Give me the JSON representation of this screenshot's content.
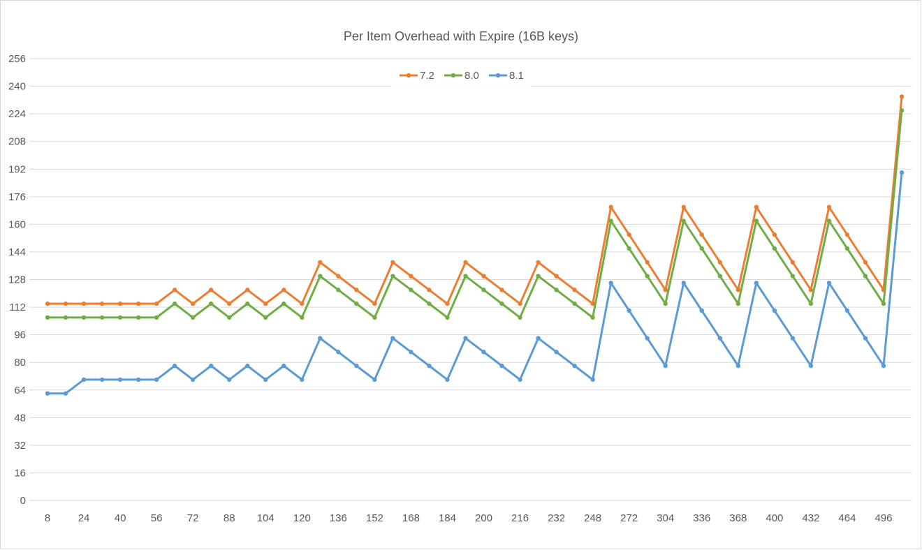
{
  "chart_data": {
    "type": "line",
    "title": "Per Item Overhead with Expire (16B keys)",
    "xlabel": "",
    "ylabel": "",
    "ylim": [
      0,
      256
    ],
    "y_ticks": [
      0,
      16,
      32,
      48,
      64,
      80,
      96,
      112,
      128,
      144,
      160,
      176,
      192,
      208,
      224,
      240,
      256
    ],
    "x": [
      8,
      16,
      24,
      32,
      40,
      48,
      56,
      64,
      72,
      80,
      88,
      96,
      104,
      112,
      120,
      128,
      136,
      144,
      152,
      160,
      168,
      176,
      184,
      192,
      200,
      208,
      216,
      224,
      232,
      240,
      248,
      256,
      272,
      288,
      304,
      320,
      336,
      352,
      368,
      384,
      400,
      416,
      432,
      448,
      464,
      480,
      496,
      512
    ],
    "x_tick_labels": [
      "8",
      "24",
      "40",
      "56",
      "72",
      "88",
      "104",
      "120",
      "136",
      "152",
      "168",
      "184",
      "200",
      "216",
      "232",
      "248",
      "272",
      "304",
      "336",
      "368",
      "400",
      "432",
      "464",
      "496"
    ],
    "grid": true,
    "legend_position": "top",
    "series": [
      {
        "name": "7.2",
        "color": "#ED7D31",
        "values": [
          114,
          114,
          114,
          114,
          114,
          114,
          114,
          122,
          114,
          122,
          114,
          122,
          114,
          122,
          114,
          138,
          130,
          122,
          114,
          138,
          130,
          122,
          114,
          138,
          130,
          122,
          114,
          138,
          130,
          122,
          114,
          170,
          154,
          138,
          122,
          170,
          154,
          138,
          122,
          170,
          154,
          138,
          122,
          170,
          154,
          138,
          122,
          234
        ]
      },
      {
        "name": "8.0",
        "color": "#70AD47",
        "values": [
          106,
          106,
          106,
          106,
          106,
          106,
          106,
          114,
          106,
          114,
          106,
          114,
          106,
          114,
          106,
          130,
          122,
          114,
          106,
          130,
          122,
          114,
          106,
          130,
          122,
          114,
          106,
          130,
          122,
          114,
          106,
          162,
          146,
          130,
          114,
          162,
          146,
          130,
          114,
          162,
          146,
          130,
          114,
          162,
          146,
          130,
          114,
          226
        ]
      },
      {
        "name": "8.1",
        "color": "#5B9BD5",
        "values": [
          62,
          62,
          70,
          70,
          70,
          70,
          70,
          78,
          70,
          78,
          70,
          78,
          70,
          78,
          70,
          94,
          86,
          78,
          70,
          94,
          86,
          78,
          70,
          94,
          86,
          78,
          70,
          94,
          86,
          78,
          70,
          126,
          110,
          94,
          78,
          126,
          110,
          94,
          78,
          126,
          110,
          94,
          78,
          126,
          110,
          94,
          78,
          190
        ]
      }
    ],
    "colors": {
      "grid": "#D9D9D9",
      "axis": "#D9D9D9",
      "text": "#595959",
      "background": "#FFFFFF"
    }
  }
}
